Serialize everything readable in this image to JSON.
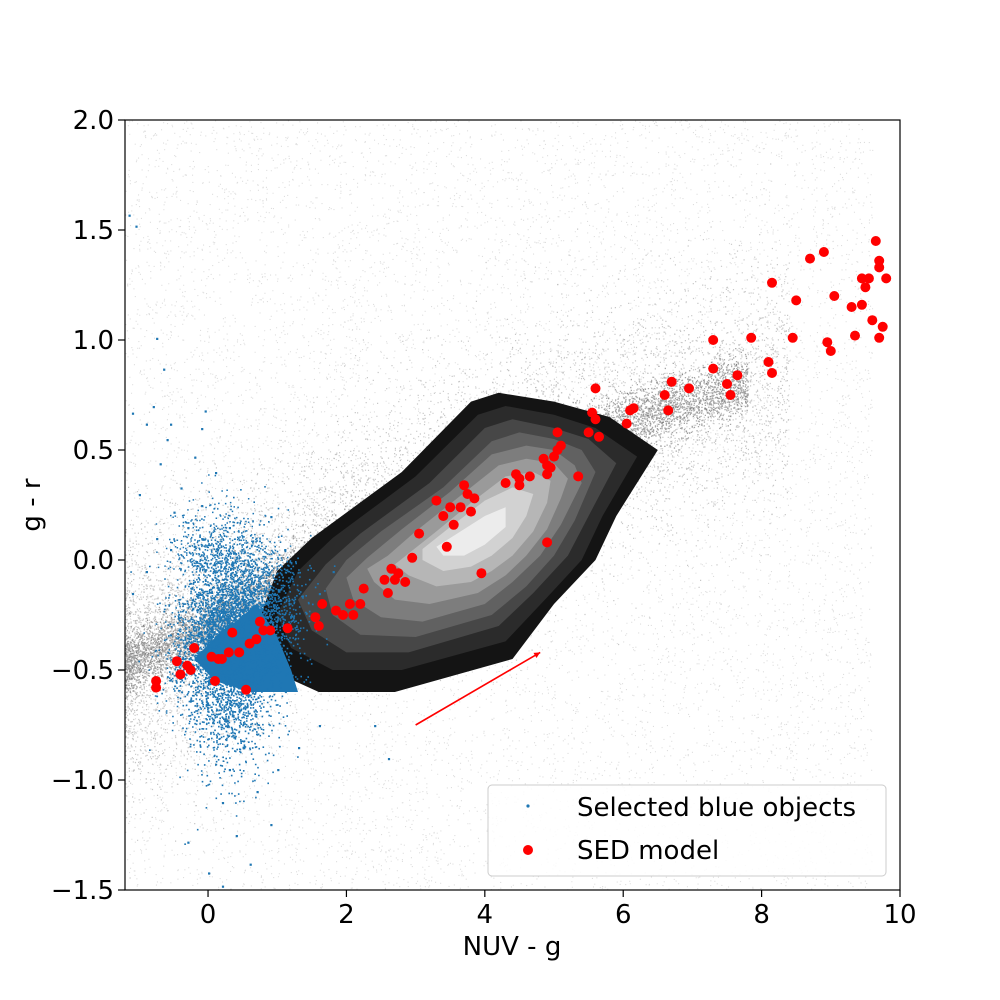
{
  "chart_data": {
    "type": "scatter",
    "title": "",
    "xlabel": "NUV - g",
    "ylabel": "g - r",
    "xlim": [
      -1.2,
      10
    ],
    "ylim": [
      -1.5,
      2.0
    ],
    "xticks": [
      0,
      2,
      4,
      6,
      8,
      10
    ],
    "yticks": [
      -1.5,
      -1.0,
      -0.5,
      0.0,
      0.5,
      1.0,
      1.5,
      2.0
    ],
    "xtick_labels": [
      "0",
      "2",
      "4",
      "6",
      "8",
      "10"
    ],
    "ytick_labels": [
      "−1.5",
      "−1.0",
      "−0.5",
      "0.0",
      "0.5",
      "1.0",
      "1.5",
      "2.0"
    ],
    "grid": false,
    "legend_position": "lower right",
    "background_cloud": {
      "color": "#000000",
      "ridge": {
        "x": [
          -1.2,
          0,
          2,
          4,
          6,
          8
        ],
        "y": [
          -0.47,
          -0.3,
          0.08,
          0.38,
          0.62,
          0.83
        ]
      }
    },
    "contour_levels": [
      {
        "color": "#141414",
        "polygon": [
          [
            1,
            -0.05
          ],
          [
            1.5,
            0.1
          ],
          [
            2.8,
            0.4
          ],
          [
            3.8,
            0.72
          ],
          [
            4.2,
            0.76
          ],
          [
            5,
            0.72
          ],
          [
            5.8,
            0.65
          ],
          [
            6.5,
            0.5
          ],
          [
            5.9,
            0.2
          ],
          [
            5.6,
            0
          ],
          [
            5.0,
            -0.2
          ],
          [
            4.4,
            -0.45
          ],
          [
            2.7,
            -0.6
          ],
          [
            1.6,
            -0.6
          ],
          [
            0.9,
            -0.5
          ],
          [
            0.7,
            -0.3
          ]
        ]
      },
      {
        "color": "#2b2b2b",
        "polygon": [
          [
            1.3,
            -0.05
          ],
          [
            1.8,
            0.1
          ],
          [
            3,
            0.38
          ],
          [
            3.9,
            0.66
          ],
          [
            4.3,
            0.7
          ],
          [
            5,
            0.66
          ],
          [
            5.6,
            0.6
          ],
          [
            6.2,
            0.47
          ],
          [
            5.7,
            0.2
          ],
          [
            5.4,
            0
          ],
          [
            4.9,
            -0.17
          ],
          [
            4.3,
            -0.37
          ],
          [
            2.8,
            -0.5
          ],
          [
            1.8,
            -0.5
          ],
          [
            1.2,
            -0.4
          ],
          [
            1.0,
            -0.25
          ]
        ]
      },
      {
        "color": "#474747",
        "polygon": [
          [
            1.7,
            -0.02
          ],
          [
            2.2,
            0.12
          ],
          [
            3.2,
            0.35
          ],
          [
            4.0,
            0.6
          ],
          [
            4.4,
            0.64
          ],
          [
            5,
            0.6
          ],
          [
            5.5,
            0.55
          ],
          [
            5.9,
            0.44
          ],
          [
            5.5,
            0.2
          ],
          [
            5.2,
            0.02
          ],
          [
            4.7,
            -0.15
          ],
          [
            4.2,
            -0.3
          ],
          [
            2.9,
            -0.42
          ],
          [
            2.0,
            -0.42
          ],
          [
            1.5,
            -0.32
          ],
          [
            1.3,
            -0.18
          ]
        ]
      },
      {
        "color": "#616161",
        "polygon": [
          [
            2.0,
            0.0
          ],
          [
            2.5,
            0.13
          ],
          [
            3.4,
            0.33
          ],
          [
            4.1,
            0.54
          ],
          [
            4.5,
            0.58
          ],
          [
            5,
            0.55
          ],
          [
            5.4,
            0.5
          ],
          [
            5.6,
            0.4
          ],
          [
            5.3,
            0.18
          ],
          [
            5.0,
            0.02
          ],
          [
            4.6,
            -0.12
          ],
          [
            4.1,
            -0.25
          ],
          [
            3.0,
            -0.35
          ],
          [
            2.2,
            -0.34
          ],
          [
            1.8,
            -0.25
          ],
          [
            1.7,
            -0.13
          ]
        ]
      },
      {
        "color": "#7d7d7d",
        "polygon": [
          [
            2.3,
            0.01
          ],
          [
            2.8,
            0.14
          ],
          [
            3.5,
            0.31
          ],
          [
            4.1,
            0.48
          ],
          [
            4.6,
            0.52
          ],
          [
            5,
            0.5
          ],
          [
            5.3,
            0.43
          ],
          [
            5.4,
            0.35
          ],
          [
            5.1,
            0.16
          ],
          [
            4.8,
            0.02
          ],
          [
            4.4,
            -0.1
          ],
          [
            4.0,
            -0.2
          ],
          [
            3.1,
            -0.28
          ],
          [
            2.5,
            -0.26
          ],
          [
            2.1,
            -0.18
          ],
          [
            2.0,
            -0.08
          ]
        ]
      },
      {
        "color": "#9a9a9a",
        "polygon": [
          [
            2.6,
            0.02
          ],
          [
            3.0,
            0.13
          ],
          [
            3.6,
            0.28
          ],
          [
            4.2,
            0.43
          ],
          [
            4.6,
            0.46
          ],
          [
            5,
            0.44
          ],
          [
            5.2,
            0.37
          ],
          [
            5.1,
            0.28
          ],
          [
            4.9,
            0.14
          ],
          [
            4.6,
            0.02
          ],
          [
            4.3,
            -0.07
          ],
          [
            3.9,
            -0.15
          ],
          [
            3.2,
            -0.2
          ],
          [
            2.7,
            -0.18
          ],
          [
            2.4,
            -0.1
          ],
          [
            2.3,
            -0.04
          ]
        ]
      },
      {
        "color": "#b6b6b6",
        "polygon": [
          [
            2.9,
            0.03
          ],
          [
            3.3,
            0.13
          ],
          [
            3.8,
            0.26
          ],
          [
            4.3,
            0.38
          ],
          [
            4.7,
            0.4
          ],
          [
            4.95,
            0.36
          ],
          [
            4.9,
            0.26
          ],
          [
            4.7,
            0.13
          ],
          [
            4.4,
            0.02
          ],
          [
            4.1,
            -0.05
          ],
          [
            3.8,
            -0.1
          ],
          [
            3.3,
            -0.12
          ],
          [
            2.9,
            -0.07
          ],
          [
            2.7,
            -0.02
          ]
        ]
      },
      {
        "color": "#d2d2d2",
        "polygon": [
          [
            3.1,
            0.05
          ],
          [
            3.5,
            0.15
          ],
          [
            4.0,
            0.27
          ],
          [
            4.4,
            0.33
          ],
          [
            4.7,
            0.3
          ],
          [
            4.6,
            0.2
          ],
          [
            4.4,
            0.1
          ],
          [
            4.1,
            0.02
          ],
          [
            3.8,
            -0.03
          ],
          [
            3.4,
            -0.05
          ],
          [
            3.1,
            0.0
          ]
        ]
      },
      {
        "color": "#ececec",
        "polygon": [
          [
            3.3,
            0.06
          ],
          [
            3.6,
            0.12
          ],
          [
            4.0,
            0.2
          ],
          [
            4.3,
            0.24
          ],
          [
            4.3,
            0.15
          ],
          [
            4.0,
            0.07
          ],
          [
            3.7,
            0.02
          ],
          [
            3.4,
            0.02
          ]
        ]
      }
    ],
    "series": [
      {
        "name": "Selected blue objects",
        "marker": "point",
        "color": "#1f77b4",
        "dense_core": [
          [
            0.7,
            -0.2
          ],
          [
            1.0,
            -0.35
          ],
          [
            1.2,
            -0.5
          ],
          [
            1.3,
            -0.6
          ],
          [
            0.6,
            -0.6
          ],
          [
            0.1,
            -0.55
          ],
          [
            -0.2,
            -0.45
          ],
          [
            0.2,
            -0.32
          ],
          [
            0.4,
            -0.28
          ]
        ],
        "isolated_points": [
          [
            -1.15,
            1.57
          ],
          [
            -1.05,
            1.52
          ],
          [
            -0.75,
            1.01
          ],
          [
            -1.1,
            0.67
          ],
          [
            -0.65,
            0.87
          ],
          [
            -0.8,
            0.7
          ],
          [
            -0.9,
            0.62
          ],
          [
            -0.55,
            0.62
          ],
          [
            -0.6,
            0.55
          ],
          [
            -1.0,
            0.3
          ],
          [
            -0.7,
            0.44
          ],
          [
            -0.4,
            0.33
          ],
          [
            -0.2,
            0.47
          ],
          [
            -0.05,
            0.68
          ],
          [
            -0.1,
            0.6
          ],
          [
            -0.5,
            0.22
          ],
          [
            -0.3,
            0.15
          ],
          [
            0.1,
            0.4
          ],
          [
            0.3,
            0.15
          ],
          [
            -0.1,
            0.25
          ],
          [
            -0.75,
            0.1
          ],
          [
            -0.55,
            0.05
          ],
          [
            0.9,
            0.2
          ],
          [
            1.1,
            0.05
          ],
          [
            -0.9,
            -0.05
          ],
          [
            -1.1,
            -0.15
          ],
          [
            1.8,
            -0.05
          ],
          [
            1.6,
            -0.15
          ],
          [
            0.2,
            -1.1
          ],
          [
            0.4,
            -1.25
          ],
          [
            0.7,
            -1.05
          ],
          [
            0.9,
            -1.2
          ],
          [
            1.0,
            -0.95
          ],
          [
            0.3,
            -0.95
          ],
          [
            0.5,
            -0.85
          ],
          [
            1.3,
            -0.85
          ],
          [
            1.6,
            -0.75
          ],
          [
            0.0,
            -1.42
          ],
          [
            0.2,
            -1.48
          ],
          [
            -0.3,
            -1.28
          ],
          [
            0.6,
            -1.38
          ],
          [
            2.4,
            -0.75
          ],
          [
            2.6,
            -0.9
          ]
        ]
      },
      {
        "name": "SED model",
        "marker": "circle",
        "color": "#ff0000",
        "points": [
          [
            -0.75,
            -0.58
          ],
          [
            -0.75,
            -0.55
          ],
          [
            -0.45,
            -0.46
          ],
          [
            -0.4,
            -0.52
          ],
          [
            -0.3,
            -0.48
          ],
          [
            -0.25,
            -0.5
          ],
          [
            -0.2,
            -0.4
          ],
          [
            0.05,
            -0.44
          ],
          [
            0.1,
            -0.55
          ],
          [
            0.15,
            -0.45
          ],
          [
            0.2,
            -0.45
          ],
          [
            0.3,
            -0.42
          ],
          [
            0.35,
            -0.33
          ],
          [
            0.45,
            -0.42
          ],
          [
            0.55,
            -0.59
          ],
          [
            0.6,
            -0.38
          ],
          [
            0.7,
            -0.36
          ],
          [
            0.75,
            -0.28
          ],
          [
            0.8,
            -0.32
          ],
          [
            0.9,
            -0.32
          ],
          [
            1.15,
            -0.31
          ],
          [
            1.55,
            -0.26
          ],
          [
            1.6,
            -0.3
          ],
          [
            1.65,
            -0.2
          ],
          [
            1.85,
            -0.23
          ],
          [
            1.95,
            -0.25
          ],
          [
            2.05,
            -0.2
          ],
          [
            2.1,
            -0.25
          ],
          [
            2.2,
            -0.2
          ],
          [
            2.25,
            -0.13
          ],
          [
            2.55,
            -0.09
          ],
          [
            2.6,
            -0.15
          ],
          [
            2.65,
            -0.04
          ],
          [
            2.7,
            -0.09
          ],
          [
            2.75,
            -0.06
          ],
          [
            2.85,
            -0.1
          ],
          [
            2.95,
            0.01
          ],
          [
            3.05,
            0.12
          ],
          [
            3.3,
            0.27
          ],
          [
            3.4,
            0.2
          ],
          [
            3.45,
            0.06
          ],
          [
            3.5,
            0.24
          ],
          [
            3.55,
            0.16
          ],
          [
            3.65,
            0.24
          ],
          [
            3.7,
            0.34
          ],
          [
            3.75,
            0.3
          ],
          [
            3.8,
            0.22
          ],
          [
            3.85,
            0.28
          ],
          [
            3.95,
            -0.06
          ],
          [
            4.3,
            0.35
          ],
          [
            4.45,
            0.39
          ],
          [
            4.5,
            0.34
          ],
          [
            4.5,
            0.37
          ],
          [
            4.65,
            0.38
          ],
          [
            4.85,
            0.46
          ],
          [
            4.9,
            0.43
          ],
          [
            4.9,
            0.39
          ],
          [
            4.9,
            0.08
          ],
          [
            4.95,
            0.42
          ],
          [
            5.0,
            0.47
          ],
          [
            5.05,
            0.58
          ],
          [
            5.05,
            0.5
          ],
          [
            5.1,
            0.52
          ],
          [
            5.35,
            0.38
          ],
          [
            5.5,
            0.58
          ],
          [
            5.55,
            0.67
          ],
          [
            5.6,
            0.64
          ],
          [
            5.6,
            0.78
          ],
          [
            5.65,
            0.56
          ],
          [
            6.05,
            0.62
          ],
          [
            6.1,
            0.68
          ],
          [
            6.15,
            0.69
          ],
          [
            6.6,
            0.75
          ],
          [
            6.65,
            0.68
          ],
          [
            6.7,
            0.81
          ],
          [
            6.95,
            0.78
          ],
          [
            7.3,
            1.0
          ],
          [
            7.3,
            0.87
          ],
          [
            7.5,
            0.8
          ],
          [
            7.55,
            0.75
          ],
          [
            7.65,
            0.84
          ],
          [
            7.85,
            1.01
          ],
          [
            8.1,
            0.9
          ],
          [
            8.15,
            0.85
          ],
          [
            8.15,
            1.26
          ],
          [
            8.45,
            1.01
          ],
          [
            8.5,
            1.18
          ],
          [
            8.7,
            1.37
          ],
          [
            8.9,
            1.4
          ],
          [
            8.95,
            0.99
          ],
          [
            9.0,
            0.95
          ],
          [
            9.05,
            1.2
          ],
          [
            9.3,
            1.15
          ],
          [
            9.35,
            1.02
          ],
          [
            9.45,
            1.28
          ],
          [
            9.45,
            1.16
          ],
          [
            9.5,
            1.24
          ],
          [
            9.55,
            1.28
          ],
          [
            9.6,
            1.09
          ],
          [
            9.65,
            1.45
          ],
          [
            9.7,
            1.33
          ],
          [
            9.7,
            1.36
          ],
          [
            9.7,
            1.01
          ],
          [
            9.75,
            1.06
          ],
          [
            9.8,
            1.28
          ]
        ]
      }
    ],
    "annotations": [
      {
        "type": "arrow",
        "color": "#ff0000",
        "from": [
          3.0,
          -0.75
        ],
        "to": [
          4.8,
          -0.42
        ]
      }
    ],
    "legend": {
      "position": "lower right",
      "entries": [
        {
          "label": "Selected blue objects",
          "marker": "point",
          "color": "#1f77b4"
        },
        {
          "label": "SED model",
          "marker": "circle",
          "color": "#ff0000"
        }
      ]
    }
  }
}
